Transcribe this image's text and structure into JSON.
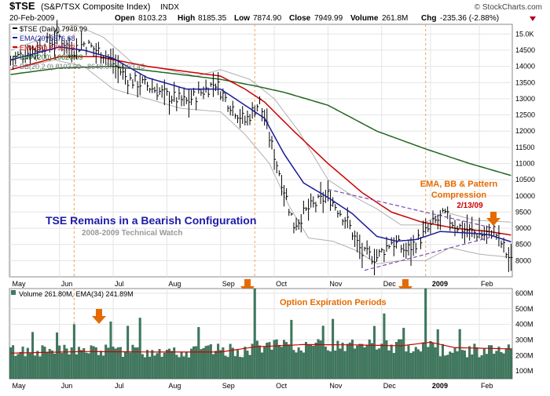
{
  "header": {
    "symbol": "$TSE",
    "name": "(S&P/TSX Composite Index)",
    "exchange": "INDX",
    "date": "20-Feb-2009",
    "open_label": "Open",
    "open": "8103.23",
    "high_label": "High",
    "high": "8185.35",
    "low_label": "Low",
    "low": "7874.90",
    "close_label": "Close",
    "close": "7949.99",
    "volume_label": "Volume",
    "volume": "261.8M",
    "chg_label": "Chg",
    "chg": "-235.36 (-2.88%)",
    "watermark": "© StockCharts.com"
  },
  "legend": {
    "price": "$TSE (Daily) 7949.99",
    "ema20": "EMA(20) 8576.68",
    "ema50": "EMA(50) 8790.73",
    "ema200": "EMA(200) 10626.69",
    "bb": "BB(20,2.0) 8103.90 - 8648.67 - 9193.45",
    "volume": "Volume 261.80M, EMA(34) 241.89M"
  },
  "annotations": {
    "title": "TSE Remains in a Bearish Configuration",
    "subtitle": "2008-2009 Technical Watch",
    "compression_1": "EMA, BB & Pattern",
    "compression_2": "Compression",
    "compression_date": "2/13/09",
    "option_expiration": "Option Expiration Periods"
  },
  "colors": {
    "ema20": "#1a1a99",
    "ema50": "#cc0000",
    "ema200": "#226622",
    "bb": "#b0b0b0",
    "price": "#000000",
    "volume_bar": "#3d7a5e",
    "annotation_title": "#1c1ca8",
    "annotation_orange": "#e66a00",
    "trendline": "#7a4bb0"
  },
  "chart_data": [
    {
      "type": "line",
      "panel": "price",
      "y_axis_side": "right",
      "ylim": [
        7500,
        15300
      ],
      "yticks": [
        "8000",
        "8500",
        "9000",
        "9500",
        "10000",
        "10500",
        "11000",
        "11500",
        "12000",
        "12500",
        "13000",
        "13500",
        "14000",
        "14500",
        "15.0K"
      ],
      "ytick_values": [
        8000,
        8500,
        9000,
        9500,
        10000,
        10500,
        11000,
        11500,
        12000,
        12500,
        13000,
        13500,
        14000,
        14500,
        15000
      ],
      "xtick_labels": [
        "May",
        "Jun",
        "Jul",
        "Aug",
        "Sep",
        "Oct",
        "Nov",
        "Dec",
        "2009",
        "Feb"
      ],
      "xtick_index": [
        0,
        20,
        42,
        64,
        86,
        108,
        130,
        152,
        172,
        192
      ],
      "n_days": 206,
      "series": [
        {
          "name": "$TSE (Daily) 7949.99",
          "key": "price",
          "anchors": [
            [
              0,
              14200
            ],
            [
              15,
              14700
            ],
            [
              20,
              14900
            ],
            [
              25,
              14500
            ],
            [
              30,
              14700
            ],
            [
              38,
              14400
            ],
            [
              42,
              14100
            ],
            [
              48,
              13600
            ],
            [
              56,
              13400
            ],
            [
              64,
              13100
            ],
            [
              72,
              12900
            ],
            [
              84,
              13500
            ],
            [
              88,
              13000
            ],
            [
              96,
              12300
            ],
            [
              102,
              12900
            ],
            [
              106,
              11800
            ],
            [
              112,
              10200
            ],
            [
              116,
              9100
            ],
            [
              122,
              9600
            ],
            [
              130,
              10000
            ],
            [
              138,
              9200
            ],
            [
              144,
              8200
            ],
            [
              150,
              8100
            ],
            [
              156,
              8600
            ],
            [
              162,
              8300
            ],
            [
              168,
              8700
            ],
            [
              174,
              9200
            ],
            [
              178,
              9400
            ],
            [
              182,
              9100
            ],
            [
              188,
              8900
            ],
            [
              194,
              8800
            ],
            [
              198,
              8950
            ],
            [
              202,
              8400
            ],
            [
              205,
              7950
            ]
          ]
        },
        {
          "name": "EMA(20) 8576.68",
          "key": "ema20",
          "anchors": [
            [
              0,
              14200
            ],
            [
              20,
              14600
            ],
            [
              30,
              14500
            ],
            [
              42,
              14250
            ],
            [
              56,
              13650
            ],
            [
              72,
              13300
            ],
            [
              86,
              13300
            ],
            [
              96,
              12800
            ],
            [
              104,
              12400
            ],
            [
              112,
              11300
            ],
            [
              120,
              10400
            ],
            [
              130,
              9950
            ],
            [
              140,
              9450
            ],
            [
              150,
              8750
            ],
            [
              158,
              8600
            ],
            [
              166,
              8650
            ],
            [
              176,
              8900
            ],
            [
              188,
              8850
            ],
            [
              196,
              8800
            ],
            [
              205,
              8580
            ]
          ]
        },
        {
          "name": "EMA(50) 8790.73",
          "key": "ema50",
          "anchors": [
            [
              0,
              13900
            ],
            [
              20,
              14300
            ],
            [
              36,
              14300
            ],
            [
              56,
              14000
            ],
            [
              86,
              13700
            ],
            [
              96,
              13300
            ],
            [
              104,
              12900
            ],
            [
              116,
              12000
            ],
            [
              130,
              11000
            ],
            [
              144,
              10100
            ],
            [
              156,
              9500
            ],
            [
              168,
              9200
            ],
            [
              182,
              9000
            ],
            [
              196,
              8900
            ],
            [
              205,
              8790
            ]
          ]
        },
        {
          "name": "EMA(200) 10626.69",
          "key": "ema200",
          "anchors": [
            [
              0,
              13750
            ],
            [
              20,
              13950
            ],
            [
              42,
              14000
            ],
            [
              64,
              13800
            ],
            [
              86,
              13600
            ],
            [
              100,
              13400
            ],
            [
              112,
              13200
            ],
            [
              130,
              12800
            ],
            [
              150,
              12000
            ],
            [
              170,
              11450
            ],
            [
              188,
              11000
            ],
            [
              205,
              10630
            ]
          ]
        },
        {
          "name": "BB(20,2.0) upper",
          "key": "bb_upper",
          "anchors": [
            [
              0,
              14500
            ],
            [
              18,
              15000
            ],
            [
              26,
              15300
            ],
            [
              38,
              14900
            ],
            [
              50,
              14100
            ],
            [
              64,
              13900
            ],
            [
              76,
              13700
            ],
            [
              86,
              13900
            ],
            [
              98,
              13600
            ],
            [
              108,
              13000
            ],
            [
              118,
              12000
            ],
            [
              130,
              10500
            ],
            [
              140,
              10000
            ],
            [
              150,
              9600
            ],
            [
              160,
              9100
            ],
            [
              168,
              9100
            ],
            [
              178,
              9500
            ],
            [
              190,
              9250
            ],
            [
              205,
              9190
            ]
          ]
        },
        {
          "name": "BB(20,2.0) lower",
          "key": "bb_lower",
          "anchors": [
            [
              0,
              13900
            ],
            [
              18,
              14200
            ],
            [
              30,
              14000
            ],
            [
              42,
              13300
            ],
            [
              56,
              13000
            ],
            [
              70,
              12700
            ],
            [
              86,
              12600
            ],
            [
              96,
              11900
            ],
            [
              106,
              11000
            ],
            [
              114,
              9700
            ],
            [
              122,
              8700
            ],
            [
              132,
              8600
            ],
            [
              142,
              8300
            ],
            [
              150,
              7900
            ],
            [
              160,
              8000
            ],
            [
              170,
              8000
            ],
            [
              180,
              8400
            ],
            [
              192,
              8200
            ],
            [
              205,
              8100
            ]
          ]
        }
      ],
      "trendlines": [
        {
          "from": [
            130,
            10200
          ],
          "to": [
            198,
            9000
          ]
        },
        {
          "from": [
            145,
            7700
          ],
          "to": [
            198,
            8750
          ]
        }
      ]
    },
    {
      "type": "bar",
      "panel": "volume",
      "y_axis_side": "right",
      "ylim": [
        50,
        630
      ],
      "yticks": [
        "100M",
        "200M",
        "300M",
        "400M",
        "500M",
        "600M"
      ],
      "ytick_values": [
        100,
        200,
        300,
        400,
        500,
        600
      ],
      "volume_base": 225,
      "spikes": [
        [
          26,
          400
        ],
        [
          100,
          640
        ],
        [
          170,
          650
        ]
      ],
      "series": [
        {
          "name": "EMA(34) 241.89M",
          "key": "vol_ema",
          "anchors": [
            [
              0,
              215
            ],
            [
              30,
              225
            ],
            [
              60,
              222
            ],
            [
              86,
              222
            ],
            [
              100,
              255
            ],
            [
              120,
              270
            ],
            [
              140,
              268
            ],
            [
              160,
              262
            ],
            [
              172,
              285
            ],
            [
              182,
              250
            ],
            [
              205,
              242
            ]
          ]
        }
      ]
    }
  ]
}
